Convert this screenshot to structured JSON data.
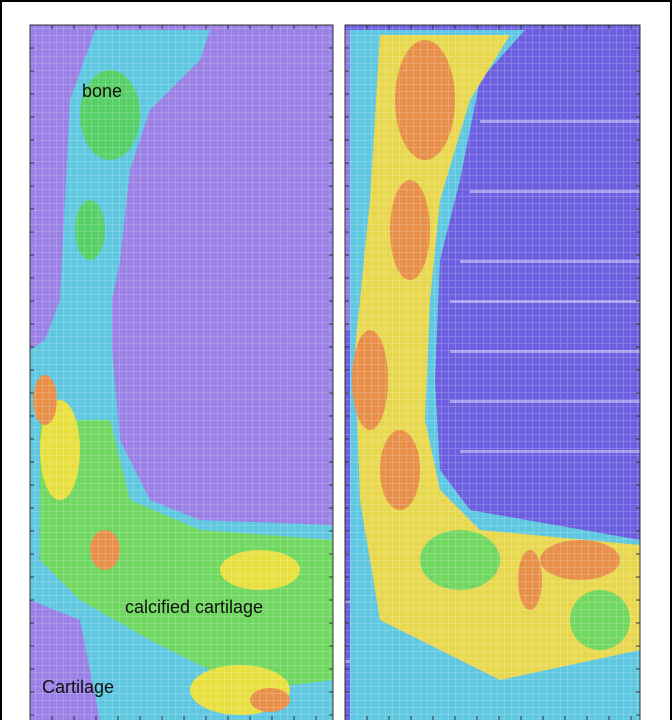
{
  "annotations": {
    "bone": "bone",
    "calcified_cartilage": "calcified cartilage",
    "cartilage": "Cartilage"
  }
}
